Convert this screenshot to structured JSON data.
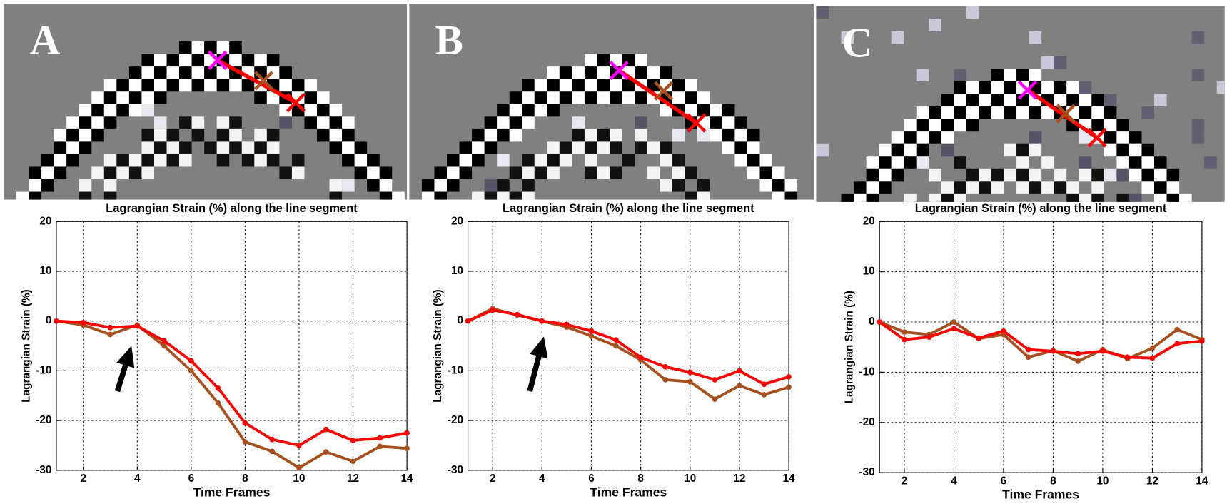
{
  "chart_data": [
    {
      "type": "line",
      "label": "A",
      "title": "Lagrangian Strain (%) along the line segment",
      "xlabel": "Time Frames",
      "ylabel": "Lagrangian Strain (%)",
      "x": [
        1,
        2,
        3,
        4,
        5,
        6,
        7,
        8,
        9,
        10,
        11,
        12,
        13,
        14
      ],
      "series": [
        {
          "color": "#a5501e",
          "values": [
            0,
            -0.8,
            -2.7,
            -0.8,
            -5,
            -10,
            -16.5,
            -24.3,
            -26.2,
            -29.5,
            -26.3,
            -28.2,
            -25.2,
            -25.6
          ]
        },
        {
          "color": "#ff0000",
          "values": [
            0,
            -0.3,
            -1.3,
            -1,
            -4,
            -8,
            -13.5,
            -20.5,
            -23.8,
            -25,
            -21.8,
            -24,
            -23.5,
            -22.5
          ]
        }
      ],
      "xlim": [
        1,
        14
      ],
      "xticks": [
        2,
        4,
        6,
        8,
        10,
        12,
        14
      ],
      "ylim": [
        -30,
        20
      ],
      "yticks": [
        -30,
        -20,
        -10,
        0,
        10,
        20
      ],
      "grid": true
    },
    {
      "type": "line",
      "label": "B",
      "title": "Lagrangian Strain (%) along the line segment",
      "xlabel": "Time Frames",
      "ylabel": "Lagrangian Strain (%)",
      "x": [
        1,
        2,
        3,
        4,
        5,
        6,
        7,
        8,
        9,
        10,
        11,
        12,
        13,
        14
      ],
      "series": [
        {
          "color": "#a5501e",
          "values": [
            0,
            2.5,
            1.2,
            0,
            -1.2,
            -3,
            -5,
            -7.8,
            -11.8,
            -12.2,
            -15.7,
            -13,
            -14.8,
            -13.3
          ]
        },
        {
          "color": "#ff0000",
          "values": [
            0,
            2.2,
            1.3,
            0,
            -0.7,
            -2,
            -3.8,
            -7.3,
            -9.2,
            -10.3,
            -11.8,
            -10,
            -12.7,
            -11.2
          ]
        }
      ],
      "xlim": [
        1,
        14
      ],
      "xticks": [
        2,
        4,
        6,
        8,
        10,
        12,
        14
      ],
      "ylim": [
        -30,
        20
      ],
      "yticks": [
        -30,
        -20,
        -10,
        0,
        10,
        20
      ],
      "grid": true
    },
    {
      "type": "line",
      "label": "C",
      "title": "Lagrangian Strain (%) along the line segment",
      "xlabel": "Time Frames",
      "ylabel": "Lagrangian Strain (%)",
      "x": [
        1,
        2,
        3,
        4,
        5,
        6,
        7,
        8,
        9,
        10,
        11,
        12,
        13,
        14
      ],
      "series": [
        {
          "color": "#a5501e",
          "values": [
            0,
            -2,
            -2.5,
            0,
            -3.3,
            -2.5,
            -7,
            -5.7,
            -7.8,
            -5.5,
            -7.3,
            -5.2,
            -1.5,
            -3.5
          ]
        },
        {
          "color": "#ff0000",
          "values": [
            0,
            -3.5,
            -3,
            -1.3,
            -3.2,
            -1.8,
            -5.5,
            -5.8,
            -6.3,
            -5.8,
            -7,
            -7.2,
            -4.3,
            -3.8
          ]
        }
      ],
      "xlim": [
        1,
        14
      ],
      "xticks": [
        2,
        4,
        6,
        8,
        10,
        12,
        14
      ],
      "ylim": [
        -30,
        20
      ],
      "yticks": [
        -30,
        -20,
        -10,
        0,
        10,
        20
      ],
      "grid": true
    }
  ]
}
